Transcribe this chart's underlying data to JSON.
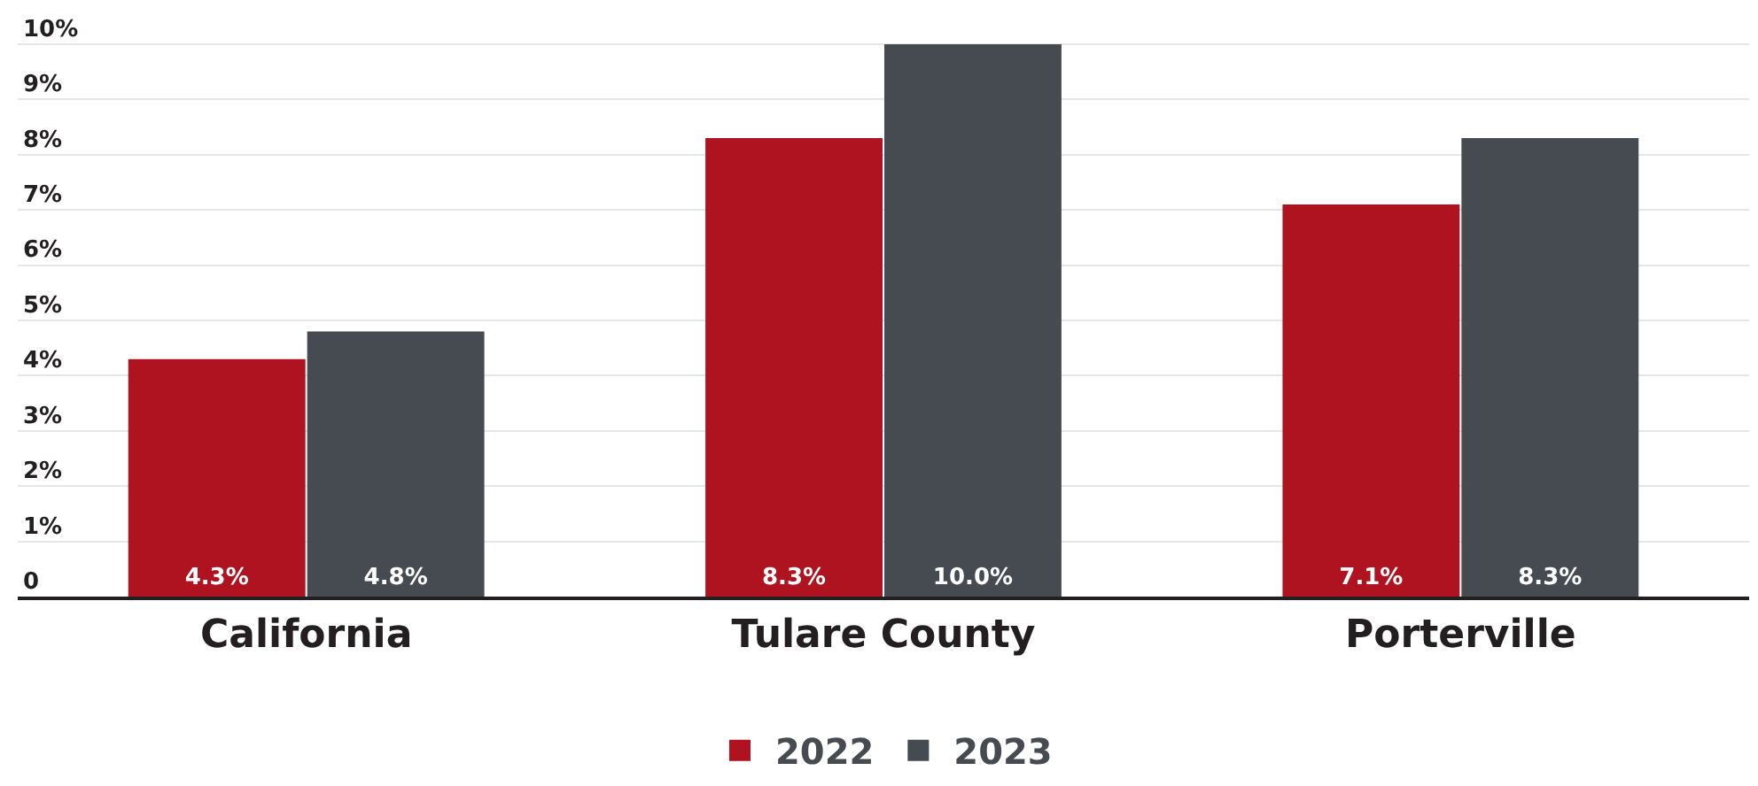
{
  "chart_data": {
    "type": "bar",
    "categories": [
      "California",
      "Tulare County",
      "Porterville"
    ],
    "series": [
      {
        "name": "2022",
        "color": "#ae131f",
        "values": [
          4.3,
          8.3,
          7.1
        ],
        "value_labels": [
          "4.3%",
          "8.3%",
          "7.1%"
        ]
      },
      {
        "name": "2023",
        "color": "#464a51",
        "values": [
          4.8,
          10.0,
          8.3
        ],
        "value_labels": [
          "4.8%",
          "10.0%",
          "8.3%"
        ]
      }
    ],
    "ylim": [
      0,
      10.8
    ],
    "yticks": [
      0,
      {
        "value": 1,
        "label": "1%"
      },
      {
        "value": 2,
        "label": "2%"
      },
      {
        "value": 3,
        "label": "3%"
      },
      {
        "value": 4,
        "label": "4%"
      },
      {
        "value": 5,
        "label": "5%"
      },
      {
        "value": 6,
        "label": "6%"
      },
      {
        "value": 7,
        "label": "7%"
      },
      {
        "value": 8,
        "label": "8%"
      },
      {
        "value": 9,
        "label": "9%"
      },
      {
        "value": 10,
        "label": "10%"
      }
    ],
    "grid": "y",
    "legend": "bottom"
  }
}
